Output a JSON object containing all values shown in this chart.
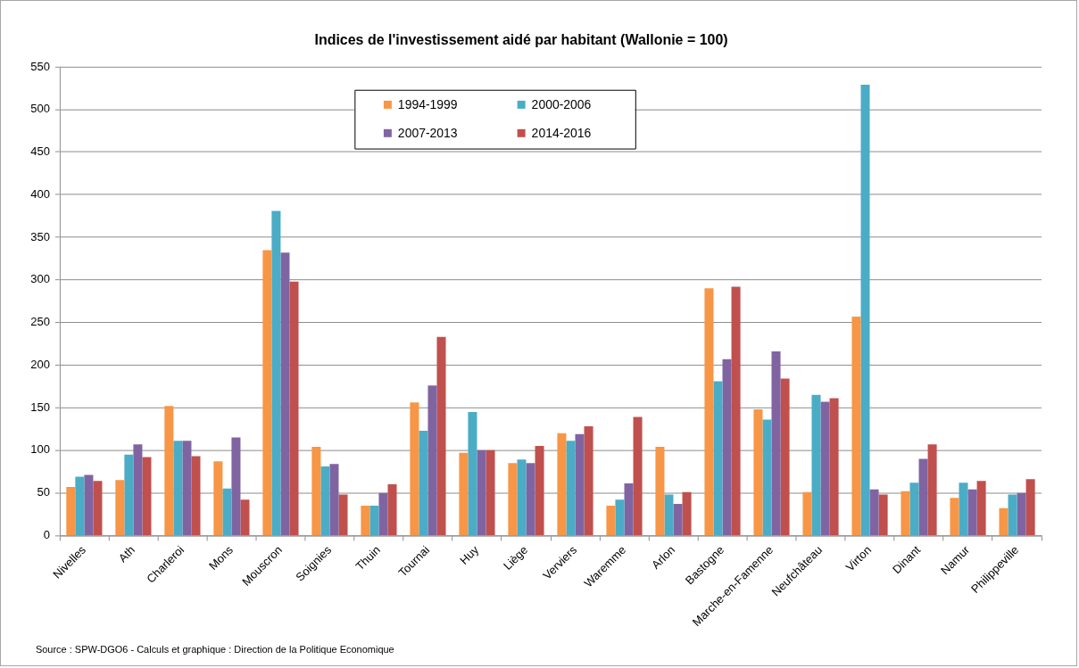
{
  "chart_data": {
    "type": "bar",
    "title": "Indices de l'investissement aidé par habitant (Wallonie = 100)",
    "categories": [
      "Nivelles",
      "Ath",
      "Charleroi",
      "Mons",
      "Mouscron",
      "Soignies",
      "Thuin",
      "Tournai",
      "Huy",
      "Liège",
      "Verviers",
      "Waremme",
      "Arlon",
      "Bastogne",
      "Marche-en-Famenne",
      "Neufchâteau",
      "Virton",
      "Dinant",
      "Namur",
      "Philippeville"
    ],
    "series": [
      {
        "name": "1994-1999",
        "color": "#f79646",
        "values": [
          57,
          65,
          152,
          87,
          335,
          104,
          35,
          156,
          97,
          85,
          120,
          35,
          104,
          290,
          148,
          51,
          257,
          52,
          44,
          32
        ]
      },
      {
        "name": "2000-2006",
        "color": "#4bacc6",
        "values": [
          69,
          95,
          111,
          55,
          381,
          81,
          35,
          123,
          145,
          89,
          111,
          42,
          48,
          181,
          136,
          165,
          529,
          62,
          62,
          48
        ]
      },
      {
        "name": "2007-2013",
        "color": "#8064a2",
        "values": [
          71,
          107,
          111,
          115,
          332,
          84,
          50,
          176,
          100,
          85,
          119,
          61,
          37,
          207,
          216,
          157,
          54,
          90,
          54,
          50
        ]
      },
      {
        "name": "2014-2016",
        "color": "#c0504d",
        "values": [
          64,
          92,
          93,
          42,
          298,
          48,
          60,
          233,
          100,
          105,
          128,
          139,
          51,
          292,
          184,
          161,
          48,
          107,
          64,
          66
        ]
      }
    ],
    "ylim": [
      0,
      550
    ],
    "yticks": [
      0,
      50,
      100,
      150,
      200,
      250,
      300,
      350,
      400,
      450,
      500,
      550
    ],
    "grid": "y",
    "legend": "top",
    "annotations": [
      "Source : SPW-DGO6 - Calculs et graphique : Direction de la Politique Economique"
    ]
  }
}
